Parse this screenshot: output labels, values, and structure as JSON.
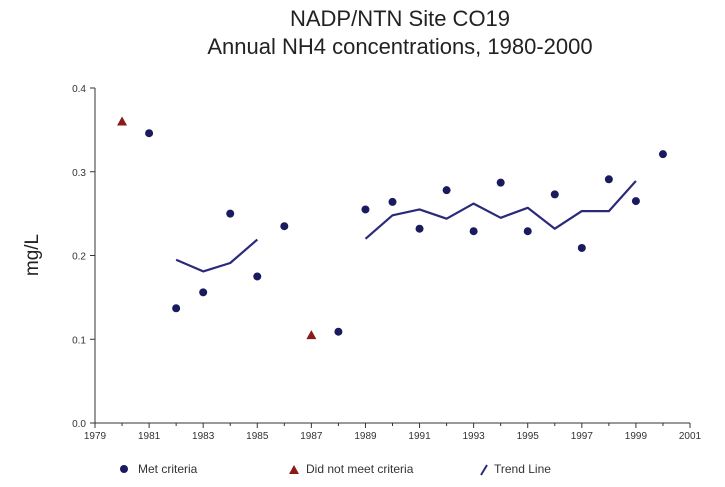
{
  "chart_data": {
    "type": "scatter",
    "title": "NADP/NTN Site CO19",
    "subtitle": "Annual NH4 concentrations, 1980-2000",
    "ylabel": "mg/L",
    "xlabel": "",
    "xlim": [
      1979,
      2001
    ],
    "ylim": [
      0.0,
      0.4
    ],
    "x_ticks": [
      "1979",
      "1981",
      "1983",
      "1985",
      "1987",
      "1989",
      "1991",
      "1993",
      "1995",
      "1997",
      "1999",
      "2001"
    ],
    "y_ticks": [
      "0.0",
      "0.1",
      "0.2",
      "0.3",
      "0.4"
    ],
    "grid": false,
    "legend_position": "bottom",
    "colors": {
      "met": "#1a1a5e",
      "not_met": "#8b1a1a",
      "trend": "#2a2a7a"
    },
    "series": [
      {
        "name": "Met criteria",
        "marker": "circle",
        "points": [
          {
            "x": 1981,
            "y": 0.346
          },
          {
            "x": 1982,
            "y": 0.137
          },
          {
            "x": 1983,
            "y": 0.156
          },
          {
            "x": 1984,
            "y": 0.25
          },
          {
            "x": 1985,
            "y": 0.175
          },
          {
            "x": 1986,
            "y": 0.235
          },
          {
            "x": 1988,
            "y": 0.109
          },
          {
            "x": 1989,
            "y": 0.255
          },
          {
            "x": 1990,
            "y": 0.264
          },
          {
            "x": 1991,
            "y": 0.232
          },
          {
            "x": 1992,
            "y": 0.278
          },
          {
            "x": 1993,
            "y": 0.229
          },
          {
            "x": 1994,
            "y": 0.287
          },
          {
            "x": 1995,
            "y": 0.229
          },
          {
            "x": 1996,
            "y": 0.273
          },
          {
            "x": 1997,
            "y": 0.209
          },
          {
            "x": 1998,
            "y": 0.291
          },
          {
            "x": 1999,
            "y": 0.265
          },
          {
            "x": 2000,
            "y": 0.321
          }
        ]
      },
      {
        "name": "Did not meet criteria",
        "marker": "triangle",
        "points": [
          {
            "x": 1980,
            "y": 0.36
          },
          {
            "x": 1987,
            "y": 0.105
          }
        ]
      },
      {
        "name": "Trend Line",
        "marker": "line",
        "segments": [
          [
            {
              "x": 1982,
              "y": 0.195
            },
            {
              "x": 1983,
              "y": 0.181
            },
            {
              "x": 1984,
              "y": 0.191
            },
            {
              "x": 1985,
              "y": 0.219
            }
          ],
          [
            {
              "x": 1989,
              "y": 0.22
            },
            {
              "x": 1990,
              "y": 0.248
            },
            {
              "x": 1991,
              "y": 0.255
            },
            {
              "x": 1992,
              "y": 0.244
            },
            {
              "x": 1993,
              "y": 0.262
            },
            {
              "x": 1994,
              "y": 0.245
            },
            {
              "x": 1995,
              "y": 0.257
            },
            {
              "x": 1996,
              "y": 0.232
            },
            {
              "x": 1997,
              "y": 0.253
            },
            {
              "x": 1998,
              "y": 0.253
            },
            {
              "x": 1999,
              "y": 0.289
            }
          ]
        ]
      }
    ]
  }
}
